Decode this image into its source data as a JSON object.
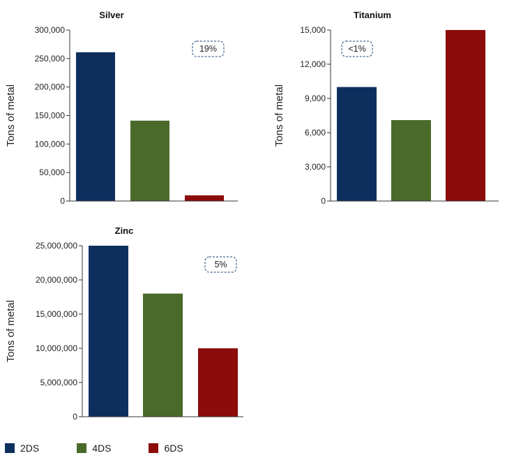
{
  "colors": {
    "2DS": "#0e2f5e",
    "4DS": "#4a6a2a",
    "6DS": "#8c0b0b",
    "badge_border": "#1a3f70"
  },
  "legend": [
    {
      "name": "2DS",
      "color": "#0e2f5e"
    },
    {
      "name": "4DS",
      "color": "#4a6a2a"
    },
    {
      "name": "6DS",
      "color": "#8c0b0b"
    }
  ],
  "chart_data": [
    {
      "type": "bar",
      "title": "Silver",
      "ylabel": "Tons of metal",
      "categories": [
        "2DS",
        "4DS",
        "6DS"
      ],
      "values": [
        261000,
        141000,
        10000
      ],
      "ylim": [
        0,
        300000
      ],
      "yticks": [
        "0",
        "50,000",
        "100,000",
        "150,000",
        "200,000",
        "250,000",
        "300,000"
      ],
      "annotation": "19%",
      "legend": "bottom"
    },
    {
      "type": "bar",
      "title": "Titanium",
      "ylabel": "Tons of metal",
      "categories": [
        "2DS",
        "4DS",
        "6DS"
      ],
      "values": [
        10000,
        7100,
        15000
      ],
      "ylim": [
        0,
        15000
      ],
      "yticks": [
        "0",
        "3,000",
        "6,000",
        "9,000",
        "12,000",
        "15,000"
      ],
      "annotation": "<1%",
      "legend": "bottom"
    },
    {
      "type": "bar",
      "title": "Zinc",
      "ylabel": "Tons of metal",
      "categories": [
        "2DS",
        "4DS",
        "6DS"
      ],
      "values": [
        25000000,
        18000000,
        10000000
      ],
      "ylim": [
        0,
        25000000
      ],
      "yticks": [
        "0",
        "5,000,000",
        "10,000,000",
        "15,000,000",
        "20,000,000",
        "25,000,000"
      ],
      "annotation": "5%",
      "legend": "bottom"
    }
  ]
}
